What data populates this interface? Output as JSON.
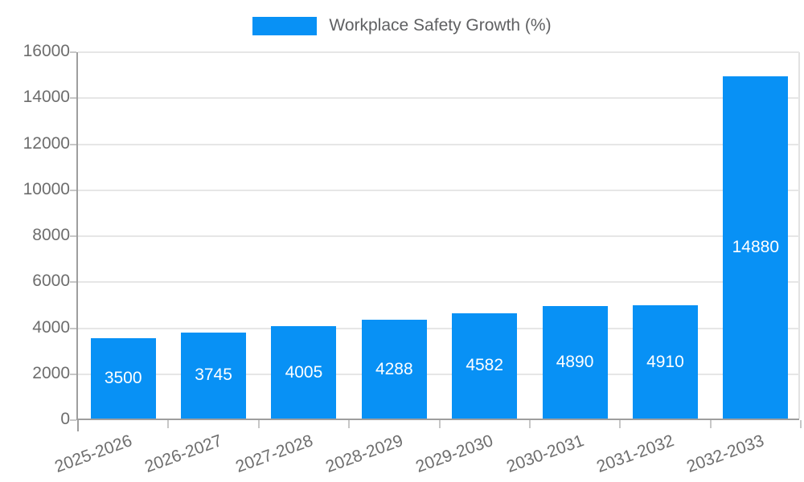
{
  "legend": {
    "label": "Workplace Safety Growth (%)"
  },
  "chart_data": {
    "type": "bar",
    "title": "Workplace Safety Growth (%)",
    "categories": [
      "2025-2026",
      "2026-2027",
      "2027-2028",
      "2028-2029",
      "2029-2030",
      "2030-2031",
      "2031-2032",
      "2032-2033"
    ],
    "values": [
      3500,
      3745,
      4005,
      4288,
      4582,
      4890,
      4910,
      14880
    ],
    "bar_labels": [
      "3500",
      "3745",
      "4005",
      "4288",
      "4582",
      "4890",
      "4910",
      "14880"
    ],
    "xlabel": "",
    "ylabel": "",
    "ylim": [
      0,
      16000
    ],
    "yticks": [
      0,
      2000,
      4000,
      6000,
      8000,
      10000,
      12000,
      14000,
      16000
    ],
    "ytick_labels": [
      "0",
      "2000",
      "4000",
      "6000",
      "8000",
      "10000",
      "12000",
      "14000",
      "16000"
    ],
    "grid": true,
    "legend_position": "top",
    "colors": {
      "bar": "#0891f5",
      "bar_label_text": "#ffffff",
      "axis_line": "#9e9e9e",
      "gridline": "#e6e6e6",
      "tick_label_text": "#6d6d6d",
      "legend_text": "#5f6062"
    }
  }
}
